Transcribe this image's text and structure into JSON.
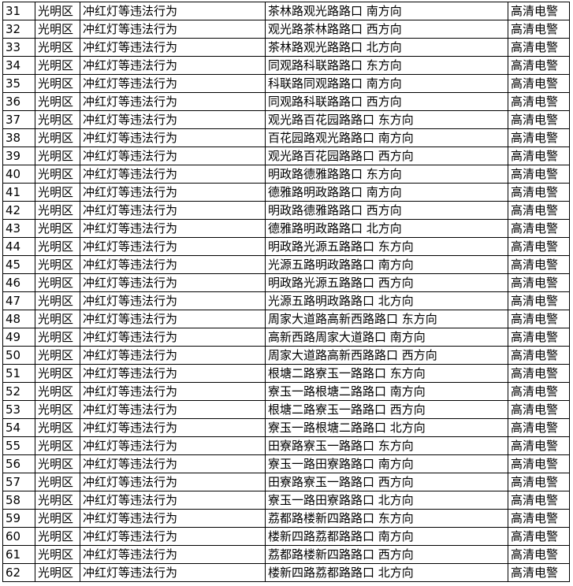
{
  "table": {
    "rows": [
      [
        "31",
        "光明区",
        "冲红灯等违法行为",
        "茶林路观光路路口 南方向",
        "高清电警"
      ],
      [
        "32",
        "光明区",
        "冲红灯等违法行为",
        "观光路茶林路路口 西方向",
        "高清电警"
      ],
      [
        "33",
        "光明区",
        "冲红灯等违法行为",
        "茶林路观光路路口 北方向",
        "高清电警"
      ],
      [
        "34",
        "光明区",
        "冲红灯等违法行为",
        "同观路科联路路口 东方向",
        "高清电警"
      ],
      [
        "35",
        "光明区",
        "冲红灯等违法行为",
        "科联路同观路路口 南方向",
        "高清电警"
      ],
      [
        "36",
        "光明区",
        "冲红灯等违法行为",
        "同观路科联路路口 西方向",
        "高清电警"
      ],
      [
        "37",
        "光明区",
        "冲红灯等违法行为",
        "观光路百花园路路口 东方向",
        "高清电警"
      ],
      [
        "38",
        "光明区",
        "冲红灯等违法行为",
        "百花园路观光路路口 南方向",
        "高清电警"
      ],
      [
        "39",
        "光明区",
        "冲红灯等违法行为",
        "观光路百花园路路口 西方向",
        "高清电警"
      ],
      [
        "40",
        "光明区",
        "冲红灯等违法行为",
        "明政路德雅路路口 东方向",
        "高清电警"
      ],
      [
        "41",
        "光明区",
        "冲红灯等违法行为",
        "德雅路明政路路口 南方向",
        "高清电警"
      ],
      [
        "42",
        "光明区",
        "冲红灯等违法行为",
        "明政路德雅路路口 西方向",
        "高清电警"
      ],
      [
        "43",
        "光明区",
        "冲红灯等违法行为",
        "德雅路明政路路口 北方向",
        "高清电警"
      ],
      [
        "44",
        "光明区",
        "冲红灯等违法行为",
        "明政路光源五路路口 东方向",
        "高清电警"
      ],
      [
        "45",
        "光明区",
        "冲红灯等违法行为",
        "光源五路明政路路口 南方向",
        "高清电警"
      ],
      [
        "46",
        "光明区",
        "冲红灯等违法行为",
        "明政路光源五路路口 西方向",
        "高清电警"
      ],
      [
        "47",
        "光明区",
        "冲红灯等违法行为",
        "光源五路明政路路口 北方向",
        "高清电警"
      ],
      [
        "48",
        "光明区",
        "冲红灯等违法行为",
        "周家大道路高新西路路口 东方向",
        "高清电警"
      ],
      [
        "49",
        "光明区",
        "冲红灯等违法行为",
        "高新西路周家大道路口 南方向",
        "高清电警"
      ],
      [
        "50",
        "光明区",
        "冲红灯等违法行为",
        "周家大道路高新西路路口 西方向",
        "高清电警"
      ],
      [
        "51",
        "光明区",
        "冲红灯等违法行为",
        "根塘二路寮玉一路路口 东方向",
        "高清电警"
      ],
      [
        "52",
        "光明区",
        "冲红灯等违法行为",
        "寮玉一路根塘二路路口 南方向",
        "高清电警"
      ],
      [
        "53",
        "光明区",
        "冲红灯等违法行为",
        "根塘二路寮玉一路路口 西方向",
        "高清电警"
      ],
      [
        "54",
        "光明区",
        "冲红灯等违法行为",
        "寮玉一路根塘二路路口 北方向",
        "高清电警"
      ],
      [
        "55",
        "光明区",
        "冲红灯等违法行为",
        "田寮路寮玉一路路口 东方向",
        "高清电警"
      ],
      [
        "56",
        "光明区",
        "冲红灯等违法行为",
        "寮玉一路田寮路路口 南方向",
        "高清电警"
      ],
      [
        "57",
        "光明区",
        "冲红灯等违法行为",
        "田寮路寮玉一路路口 西方向",
        "高清电警"
      ],
      [
        "58",
        "光明区",
        "冲红灯等违法行为",
        "寮玉一路田寮路路口 北方向",
        "高清电警"
      ],
      [
        "59",
        "光明区",
        "冲红灯等违法行为",
        "荔都路楼新四路路口 东方向",
        "高清电警"
      ],
      [
        "60",
        "光明区",
        "冲红灯等违法行为",
        "楼新四路荔都路路口 南方向",
        "高清电警"
      ],
      [
        "61",
        "光明区",
        "冲红灯等违法行为",
        "荔都路楼新四路路口 西方向",
        "高清电警"
      ],
      [
        "62",
        "光明区",
        "冲红灯等违法行为",
        "楼新四路荔都路路口 北方向",
        "高清电警"
      ]
    ]
  }
}
